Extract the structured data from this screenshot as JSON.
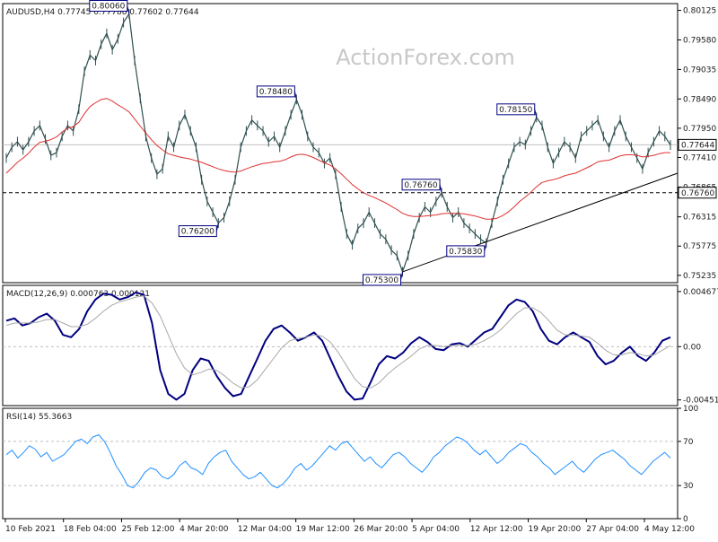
{
  "watermark": "ActionForex.com",
  "colors": {
    "price": "#2f4f4f",
    "ema": "#e03030",
    "macd": "#000080",
    "signal": "#a8a8a8",
    "rsi": "#1e90ff",
    "trend": "#000000",
    "level": "#000000",
    "grid": "#bfbfbf",
    "label_border": "#000080",
    "current_box": "#000000"
  },
  "chart_data": [
    {
      "type": "line",
      "panel": "price",
      "title": "AUDUSD,H4  0.77745 0.77788 0.77602 0.77644",
      "x_labels": [
        "10 Feb 2021",
        "18 Feb 04:00",
        "25 Feb 12:00",
        "4 Mar 20:00",
        "12 Mar 04:00",
        "19 Mar 12:00",
        "26 Mar 20:00",
        "5 Apr 04:00",
        "12 Apr 12:00",
        "19 Apr 20:00",
        "27 Apr 04:00",
        "4 May 12:00"
      ],
      "y_ticks": [
        "0.80125",
        "0.79580",
        "0.79035",
        "0.78490",
        "0.77950",
        "0.77410",
        "0.76865",
        "0.76315",
        "0.75775",
        "0.75235"
      ],
      "ylim": [
        0.751,
        0.8025
      ],
      "series": [
        {
          "values": [
            0.774,
            0.776,
            0.777,
            0.7755,
            0.777,
            0.779,
            0.78,
            0.7775,
            0.7745,
            0.775,
            0.778,
            0.78,
            0.779,
            0.783,
            0.79,
            0.793,
            0.792,
            0.795,
            0.797,
            0.794,
            0.796,
            0.799,
            0.8006,
            0.792,
            0.785,
            0.778,
            0.774,
            0.771,
            0.772,
            0.778,
            0.776,
            0.78,
            0.782,
            0.779,
            0.776,
            0.77,
            0.766,
            0.764,
            0.762,
            0.763,
            0.766,
            0.77,
            0.776,
            0.779,
            0.781,
            0.78,
            0.779,
            0.777,
            0.778,
            0.776,
            0.779,
            0.782,
            0.7848,
            0.782,
            0.778,
            0.776,
            0.775,
            0.773,
            0.774,
            0.771,
            0.765,
            0.76,
            0.758,
            0.761,
            0.762,
            0.764,
            0.762,
            0.76,
            0.759,
            0.757,
            0.756,
            0.753,
            0.756,
            0.76,
            0.763,
            0.765,
            0.764,
            0.766,
            0.7676,
            0.765,
            0.763,
            0.764,
            0.762,
            0.761,
            0.76,
            0.759,
            0.7583,
            0.762,
            0.766,
            0.77,
            0.773,
            0.776,
            0.777,
            0.7765,
            0.779,
            0.7815,
            0.78,
            0.776,
            0.773,
            0.775,
            0.777,
            0.776,
            0.774,
            0.778,
            0.779,
            0.78,
            0.781,
            0.778,
            0.776,
            0.779,
            0.781,
            0.778,
            0.776,
            0.774,
            0.772,
            0.775,
            0.777,
            0.779,
            0.778,
            0.7764
          ],
          "name": ""
        },
        {
          "values": [
            0.7712,
            0.7722,
            0.7732,
            0.774,
            0.7749,
            0.776,
            0.7769,
            0.7771,
            0.7774,
            0.7779,
            0.7788,
            0.7795,
            0.7798,
            0.7806,
            0.7822,
            0.7835,
            0.7842,
            0.7848,
            0.785,
            0.7845,
            0.7838,
            0.7832,
            0.7825,
            0.7812,
            0.7799,
            0.7786,
            0.7774,
            0.7763,
            0.7755,
            0.7748,
            0.7745,
            0.7742,
            0.774,
            0.7738,
            0.7735,
            0.7732,
            0.7728,
            0.7724,
            0.772,
            0.7717,
            0.7715,
            0.7714,
            0.7716,
            0.772,
            0.7724,
            0.7727,
            0.773,
            0.7731,
            0.7733,
            0.7734,
            0.7737,
            0.7742,
            0.7746,
            0.7747,
            0.7745,
            0.7741,
            0.7736,
            0.7731,
            0.7727,
            0.772,
            0.7711,
            0.7701,
            0.7691,
            0.7683,
            0.7676,
            0.7671,
            0.7667,
            0.7662,
            0.7657,
            0.7651,
            0.7645,
            0.7638,
            0.7634,
            0.7632,
            0.7632,
            0.7633,
            0.7634,
            0.7635,
            0.7637,
            0.7638,
            0.7638,
            0.7638,
            0.7637,
            0.7635,
            0.7633,
            0.763,
            0.7627,
            0.7627,
            0.7629,
            0.7634,
            0.7641,
            0.765,
            0.766,
            0.7668,
            0.7677,
            0.7687,
            0.7695,
            0.7698,
            0.77,
            0.7703,
            0.7707,
            0.771,
            0.7712,
            0.7717,
            0.7722,
            0.7727,
            0.7733,
            0.7735,
            0.7736,
            0.774,
            0.7744,
            0.7746,
            0.7746,
            0.7745,
            0.7742,
            0.7743,
            0.7745,
            0.7748,
            0.775,
            0.775
          ],
          "name": ""
        }
      ],
      "annotations": [
        "0.80060",
        "0.78480",
        "0.78150",
        "0.76760",
        "0.76200",
        "0.75830",
        "0.75300"
      ],
      "current_price": "0.77644",
      "support_level": "0.76760",
      "trendline": {
        "from_value": 0.753,
        "to_value": 0.7712
      }
    },
    {
      "type": "line",
      "panel": "macd",
      "title": "MACD(12,26,9) 0.000763 0.000121",
      "y_ticks": [
        "0.004677",
        "0.00",
        "-0.004519"
      ],
      "ylim": [
        -0.005,
        0.0052
      ],
      "series": [
        {
          "values": [
            0.0022,
            0.0024,
            0.0018,
            0.002,
            0.0025,
            0.0028,
            0.0022,
            0.001,
            0.0008,
            0.0015,
            0.003,
            0.004,
            0.0045,
            0.0044,
            0.004,
            0.0042,
            0.0046,
            0.0044,
            0.002,
            -0.002,
            -0.004,
            -0.0045,
            -0.004,
            -0.002,
            -0.001,
            -0.0012,
            -0.0025,
            -0.0035,
            -0.0042,
            -0.004,
            -0.0025,
            -0.001,
            0.0005,
            0.0015,
            0.0018,
            0.0012,
            0.0005,
            0.0008,
            0.0012,
            0.0005,
            -0.001,
            -0.0025,
            -0.0038,
            -0.0045,
            -0.0044,
            -0.003,
            -0.0015,
            -0.0008,
            -0.001,
            -0.0005,
            0.0003,
            0.0008,
            0.0004,
            -0.0002,
            -0.0003,
            0.0002,
            0.0003,
            0.0,
            0.0006,
            0.0012,
            0.0015,
            0.0025,
            0.0035,
            0.004,
            0.0038,
            0.003,
            0.0015,
            0.0005,
            0.0002,
            0.0008,
            0.0012,
            0.0008,
            0.0004,
            -0.0008,
            -0.0015,
            -0.0012,
            -0.0005,
            0.0,
            -0.0008,
            -0.0012,
            -0.0005,
            0.0005,
            0.0008
          ],
          "name": ""
        },
        {
          "values": [
            0.0018,
            0.002,
            0.002,
            0.002,
            0.0021,
            0.0023,
            0.0023,
            0.002,
            0.0017,
            0.0017,
            0.0019,
            0.0024,
            0.003,
            0.0035,
            0.0038,
            0.004,
            0.0042,
            0.0043,
            0.0037,
            0.0026,
            0.001,
            -0.0006,
            -0.0018,
            -0.0024,
            -0.0022,
            -0.0019,
            -0.002,
            -0.0025,
            -0.0031,
            -0.0035,
            -0.0034,
            -0.0028,
            -0.0019,
            -0.001,
            -0.0001,
            0.0005,
            0.0007,
            0.0008,
            0.001,
            0.0009,
            0.0004,
            -0.0005,
            -0.0016,
            -0.0027,
            -0.0034,
            -0.0035,
            -0.0031,
            -0.0024,
            -0.0018,
            -0.0013,
            -0.0008,
            -0.0002,
            0.0001,
            0.0001,
            0.0,
            0.0001,
            0.0001,
            0.0001,
            0.0002,
            0.0005,
            0.0009,
            0.0014,
            0.0021,
            0.0028,
            0.0033,
            0.0033,
            0.0029,
            0.0022,
            0.0014,
            0.001,
            0.001,
            0.0009,
            0.0008,
            0.0003,
            -0.0003,
            -0.0007,
            -0.0007,
            -0.0005,
            -0.0006,
            -0.0008,
            -0.0007,
            -0.0003,
            0.0001
          ],
          "name": ""
        }
      ]
    },
    {
      "type": "line",
      "panel": "rsi",
      "title": "RSI(14) 55.3663",
      "y_ticks": [
        "100",
        "70",
        "30",
        "0"
      ],
      "ylim": [
        0,
        100
      ],
      "series": [
        {
          "values": [
            58,
            62,
            55,
            60,
            66,
            63,
            56,
            60,
            52,
            55,
            58,
            64,
            70,
            72,
            68,
            74,
            76,
            70,
            60,
            48,
            40,
            30,
            28,
            34,
            42,
            46,
            44,
            38,
            36,
            40,
            48,
            52,
            46,
            44,
            40,
            50,
            56,
            60,
            62,
            52,
            46,
            40,
            36,
            38,
            42,
            36,
            30,
            28,
            32,
            38,
            46,
            50,
            44,
            48,
            54,
            60,
            66,
            62,
            68,
            70,
            64,
            58,
            52,
            56,
            50,
            46,
            52,
            58,
            60,
            56,
            50,
            46,
            42,
            48,
            56,
            60,
            66,
            70,
            74,
            72,
            68,
            62,
            58,
            62,
            56,
            50,
            54,
            60,
            64,
            68,
            66,
            60,
            56,
            50,
            46,
            40,
            44,
            48,
            52,
            46,
            42,
            48,
            54,
            58,
            60,
            62,
            58,
            54,
            48,
            44,
            40,
            46,
            52,
            56,
            60,
            55
          ],
          "name": ""
        }
      ]
    }
  ]
}
